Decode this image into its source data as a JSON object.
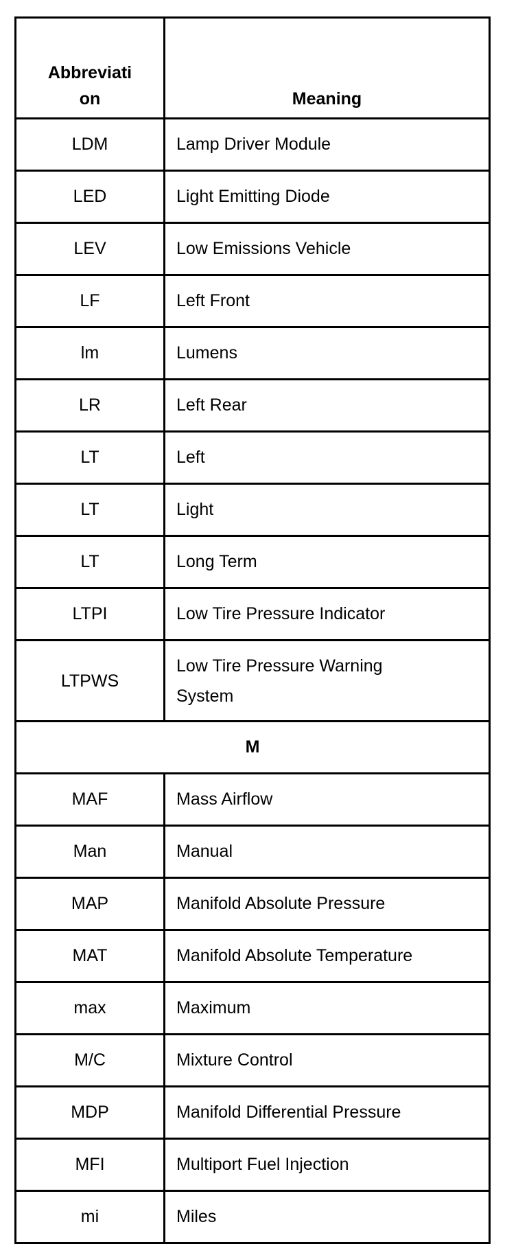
{
  "table": {
    "headers": {
      "abbreviation_line1": "Abbreviati",
      "abbreviation_line2": "on",
      "meaning": "Meaning"
    },
    "rows_l": [
      {
        "abbr": "LDM",
        "meaning": "Lamp Driver Module"
      },
      {
        "abbr": "LED",
        "meaning": "Light Emitting Diode"
      },
      {
        "abbr": "LEV",
        "meaning": "Low Emissions Vehicle"
      },
      {
        "abbr": "LF",
        "meaning": "Left Front"
      },
      {
        "abbr": "lm",
        "meaning": "Lumens"
      },
      {
        "abbr": "LR",
        "meaning": "Left Rear"
      },
      {
        "abbr": "LT",
        "meaning": "Left"
      },
      {
        "abbr": "LT",
        "meaning": "Light"
      },
      {
        "abbr": "LT",
        "meaning": "Long Term"
      },
      {
        "abbr": "LTPI",
        "meaning": "Low Tire Pressure Indicator"
      },
      {
        "abbr": "LTPWS",
        "meaning_line1": "Low Tire Pressure Warning",
        "meaning_line2": "System"
      }
    ],
    "section_m": "M",
    "rows_m": [
      {
        "abbr": "MAF",
        "meaning": "Mass Airflow"
      },
      {
        "abbr": "Man",
        "meaning": "Manual"
      },
      {
        "abbr": "MAP",
        "meaning": "Manifold Absolute Pressure"
      },
      {
        "abbr": "MAT",
        "meaning": "Manifold Absolute Temperature"
      },
      {
        "abbr": "max",
        "meaning": "Maximum"
      },
      {
        "abbr": "M/C",
        "meaning": "Mixture Control"
      },
      {
        "abbr": "MDP",
        "meaning": "Manifold Differential Pressure"
      },
      {
        "abbr": "MFI",
        "meaning": "Multiport Fuel Injection"
      },
      {
        "abbr": "mi",
        "meaning": "Miles"
      }
    ]
  }
}
